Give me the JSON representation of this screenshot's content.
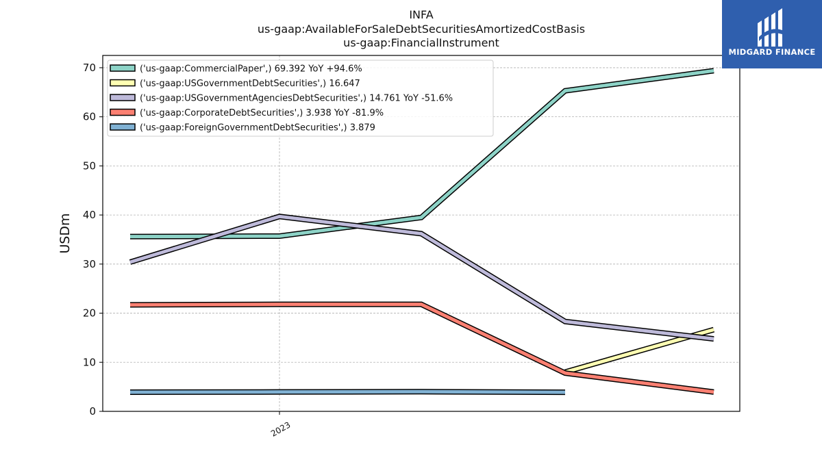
{
  "chart_data": {
    "type": "line",
    "title_lines": [
      "INFA",
      "us-gaap:AvailableForSaleDebtSecuritiesAmortizedCostBasis",
      "us-gaap:FinancialInstrument"
    ],
    "ylabel": "USDm",
    "xlabel": "",
    "ylim": [
      0,
      72.5
    ],
    "yticks": [
      0,
      10,
      20,
      30,
      40,
      50,
      60,
      70
    ],
    "x_tick_labels": [
      "2023"
    ],
    "grid": true,
    "legend_position": "top-left",
    "series": [
      {
        "name": "('us-gaap:CommercialPaper',) 69.392 YoY +94.6%",
        "color": "#8dd3c7",
        "values": [
          35.6,
          35.7,
          39.5,
          65.3,
          69.392
        ]
      },
      {
        "name": "('us-gaap:USGovernmentDebtSecurities',) 16.647",
        "color": "#ffffb3",
        "values": [
          null,
          null,
          null,
          8.0,
          16.647
        ]
      },
      {
        "name": "('us-gaap:USGovernmentAgenciesDebtSecurities',) 14.761 YoY -51.6%",
        "color": "#bebada",
        "values": [
          30.4,
          39.7,
          36.2,
          18.3,
          14.761
        ]
      },
      {
        "name": "('us-gaap:CorporateDebtSecurities',) 3.938 YoY -81.9%",
        "color": "#fb8072",
        "values": [
          21.7,
          21.8,
          21.8,
          7.8,
          3.938
        ]
      },
      {
        "name": "('us-gaap:ForeignGovernmentDebtSecurities',) 3.879",
        "color": "#80b1d3",
        "values": [
          3.9,
          3.95,
          4.0,
          3.879,
          null
        ]
      }
    ]
  },
  "logo": {
    "text": "MIDGARD FINANCE"
  }
}
